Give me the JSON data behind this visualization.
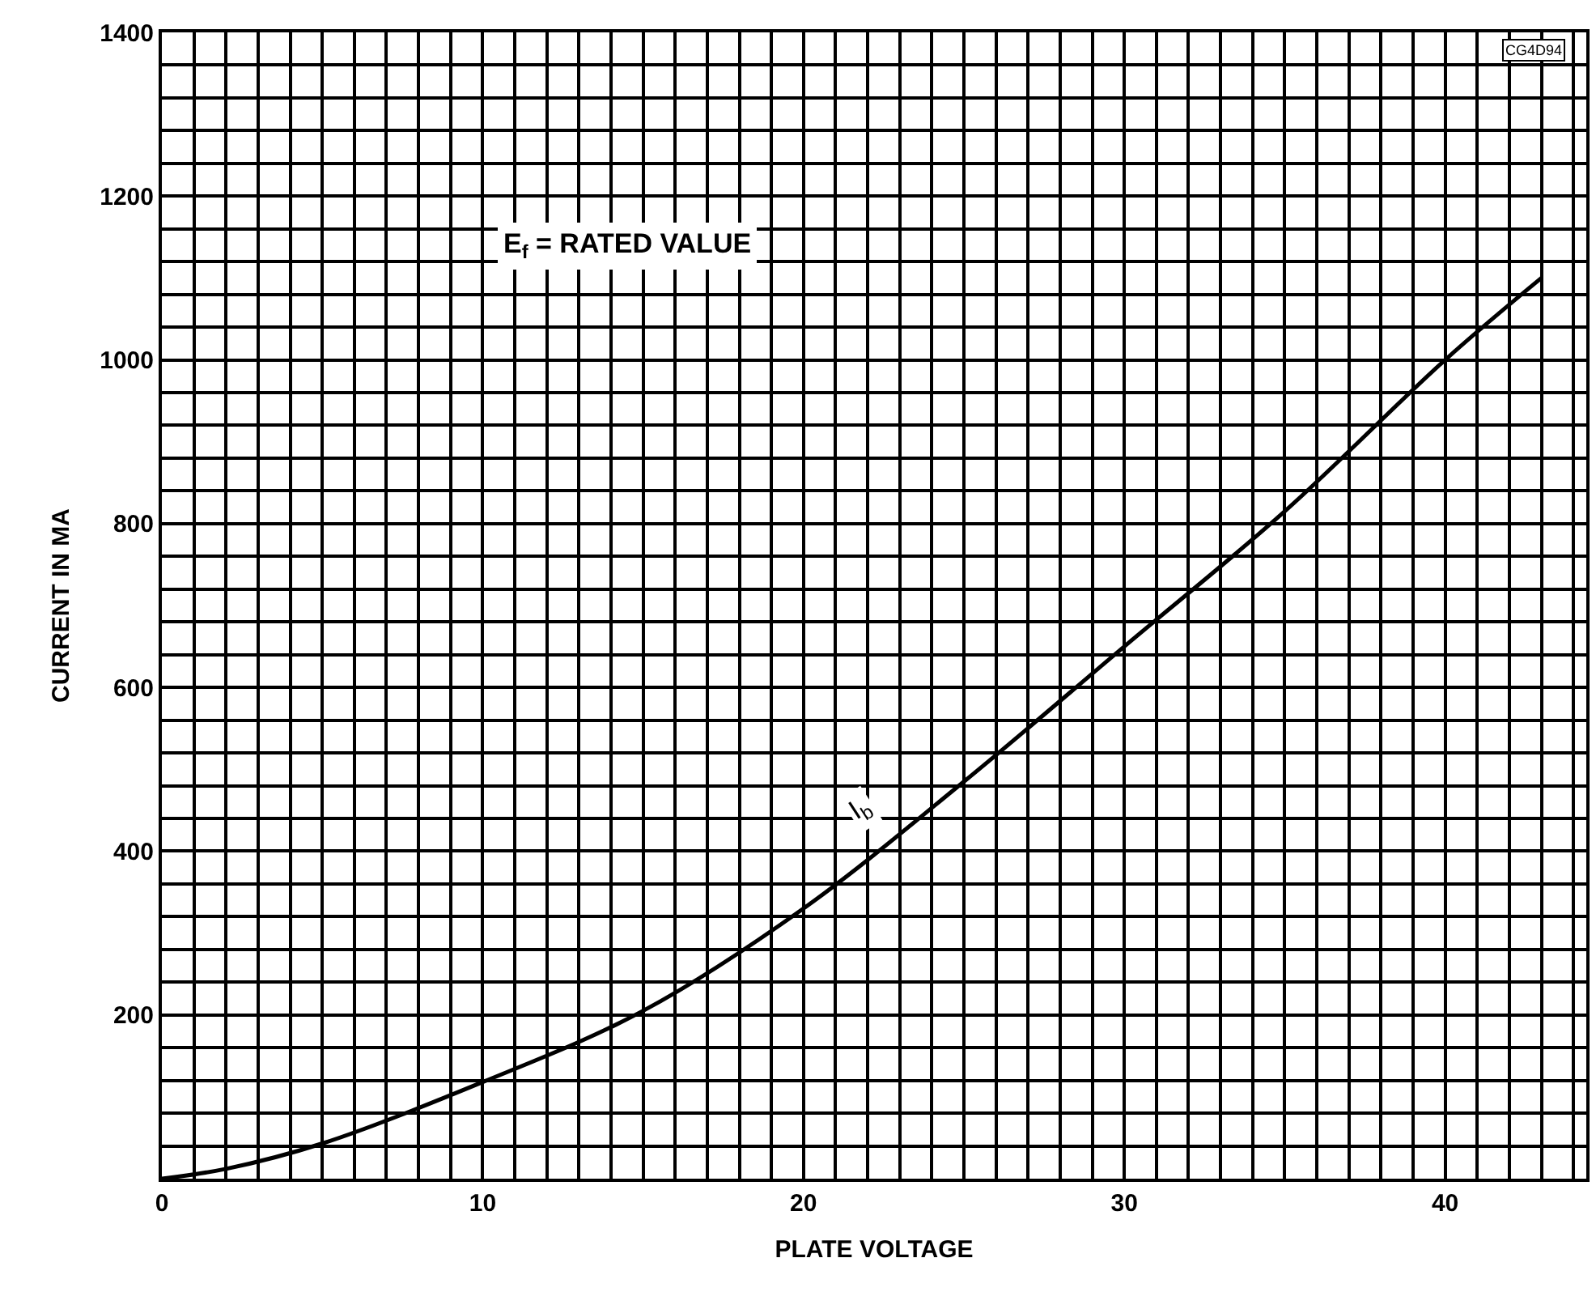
{
  "chart_data": {
    "type": "line",
    "xlabel": "PLATE VOLTAGE",
    "ylabel": "CURRENT IN MA",
    "x": [
      0,
      2,
      5,
      10,
      15,
      20,
      25,
      30,
      35,
      40,
      43
    ],
    "series": [
      {
        "name": "I$_{b}$",
        "color": "#000000",
        "values": [
          0,
          12,
          43,
          118,
          205,
          330,
          485,
          650,
          815,
          1000,
          1100
        ]
      }
    ],
    "xlim": [
      0,
      44.4
    ],
    "ylim": [
      0,
      1400
    ],
    "xticks": [
      0,
      10,
      20,
      30,
      40
    ],
    "yticks": [
      200,
      400,
      600,
      800,
      1000,
      1200,
      1400
    ],
    "grid": true,
    "legend": false,
    "marker": "none",
    "line_style": "solid",
    "annotations": [
      "E$_{f}$ = RATED VALUE",
      "CG4D94"
    ]
  }
}
